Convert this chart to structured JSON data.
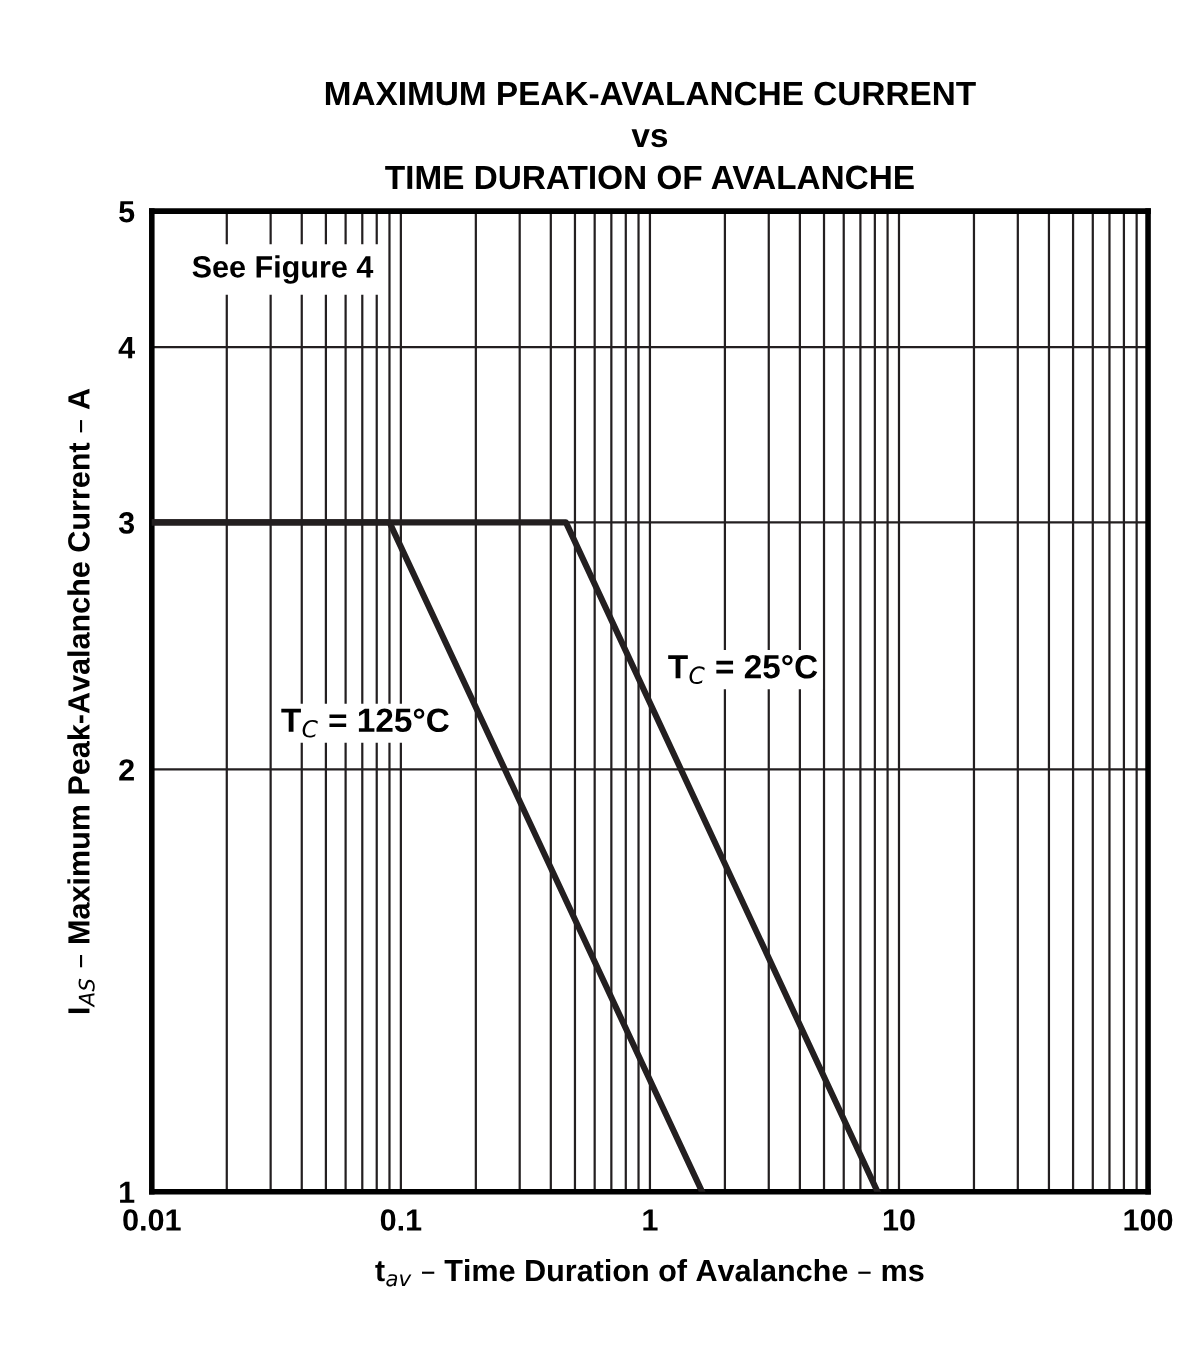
{
  "chart_data": {
    "type": "line",
    "title": "MAXIMUM PEAK-AVALANCHE CURRENT\nvs\nTIME DURATION OF AVALANCHE",
    "xlabel": "t$_{av}$ – Time Duration of Avalanche – ms",
    "ylabel": "I$_{AS}$ – Maximum Peak-Avalanche Current – A",
    "log": "xy",
    "grid": true,
    "legend": false,
    "marker": "none",
    "line_style": "solid",
    "xlim": [
      0.01,
      100
    ],
    "ylim": [
      1,
      5
    ],
    "xticks": [
      0.01,
      {
        "value": 0.02,
        "label": null
      },
      {
        "value": 0.03,
        "label": null
      },
      {
        "value": 0.04,
        "label": null
      },
      {
        "value": 0.05,
        "label": null
      },
      {
        "value": 0.06,
        "label": null
      },
      {
        "value": 0.07,
        "label": null
      },
      {
        "value": 0.08,
        "label": null
      },
      {
        "value": 0.09,
        "label": null
      },
      0.1,
      {
        "value": 0.2,
        "label": null
      },
      {
        "value": 0.3,
        "label": null
      },
      {
        "value": 0.4,
        "label": null
      },
      {
        "value": 0.5,
        "label": null
      },
      {
        "value": 0.6,
        "label": null
      },
      {
        "value": 0.7,
        "label": null
      },
      {
        "value": 0.8,
        "label": null
      },
      {
        "value": 0.9,
        "label": null
      },
      1,
      {
        "value": 2,
        "label": null
      },
      {
        "value": 3,
        "label": null
      },
      {
        "value": 4,
        "label": null
      },
      {
        "value": 5,
        "label": null
      },
      {
        "value": 6,
        "label": null
      },
      {
        "value": 7,
        "label": null
      },
      {
        "value": 8,
        "label": null
      },
      {
        "value": 9,
        "label": null
      },
      10,
      {
        "value": 20,
        "label": null
      },
      {
        "value": 30,
        "label": null
      },
      {
        "value": 40,
        "label": null
      },
      {
        "value": 50,
        "label": null
      },
      {
        "value": 60,
        "label": null
      },
      {
        "value": 70,
        "label": null
      },
      {
        "value": 80,
        "label": null
      },
      {
        "value": 90,
        "label": null
      },
      100
    ],
    "yticks": [
      1,
      2,
      3,
      4,
      5
    ],
    "series": [
      {
        "name": "T$_{C}$ = 125°C",
        "color": "#231f20",
        "x": [
          0.01,
          0.09,
          1.62
        ],
        "values": [
          3,
          3,
          1
        ]
      },
      {
        "name": "T$_{C}$ = 25°C",
        "color": "#231f20",
        "x": [
          0.01,
          0.46,
          8.2
        ],
        "values": [
          3,
          3,
          1
        ]
      }
    ],
    "annotations": [
      "See Figure 4"
    ]
  }
}
